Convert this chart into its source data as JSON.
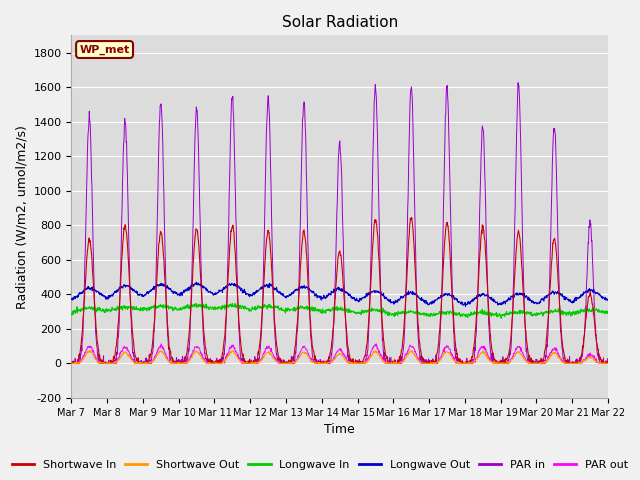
{
  "title": "Solar Radiation",
  "xlabel": "Time",
  "ylabel": "Radiation (W/m2, umol/m2/s)",
  "ylim": [
    -200,
    1900
  ],
  "yticks": [
    -200,
    0,
    200,
    400,
    600,
    800,
    1000,
    1200,
    1400,
    1600,
    1800
  ],
  "xstart_day": 7,
  "n_days": 15,
  "legend_labels": [
    "Shortwave In",
    "Shortwave Out",
    "Longwave In",
    "Longwave Out",
    "PAR in",
    "PAR out"
  ],
  "legend_colors": [
    "#cc0000",
    "#ff9900",
    "#00cc00",
    "#0000cc",
    "#9900cc",
    "#ff00ff"
  ],
  "annotation_text": "WP_met",
  "annotation_color": "#880000",
  "annotation_bg": "#ffffcc",
  "plot_bg_color": "#dcdcdc",
  "fig_bg_color": "#f0f0f0",
  "grid_color": "#ffffff",
  "title_fontsize": 11,
  "axis_fontsize": 9,
  "tick_fontsize": 8,
  "legend_fontsize": 8
}
